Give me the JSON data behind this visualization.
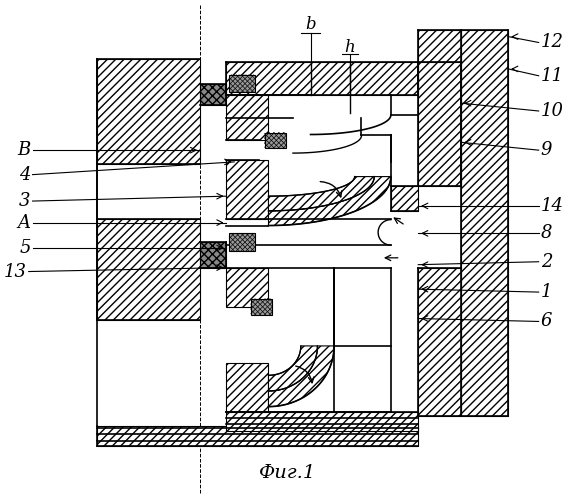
{
  "title": "Фиг.1",
  "bg_color": "#ffffff",
  "figsize": [
    5.69,
    5.0
  ],
  "dpi": 100,
  "labels_left": [
    [
      "B",
      22,
      148
    ],
    [
      "4",
      22,
      173
    ],
    [
      "3",
      22,
      200
    ],
    [
      "A",
      22,
      222
    ],
    [
      "5",
      22,
      248
    ],
    [
      "13",
      18,
      272
    ]
  ],
  "labels_right": [
    [
      "12",
      543,
      38
    ],
    [
      "11",
      543,
      72
    ],
    [
      "10",
      543,
      108
    ],
    [
      "9",
      543,
      148
    ],
    [
      "14",
      543,
      205
    ],
    [
      "8",
      543,
      233
    ],
    [
      "2",
      543,
      262
    ],
    [
      "1",
      543,
      293
    ],
    [
      "6",
      543,
      323
    ]
  ]
}
